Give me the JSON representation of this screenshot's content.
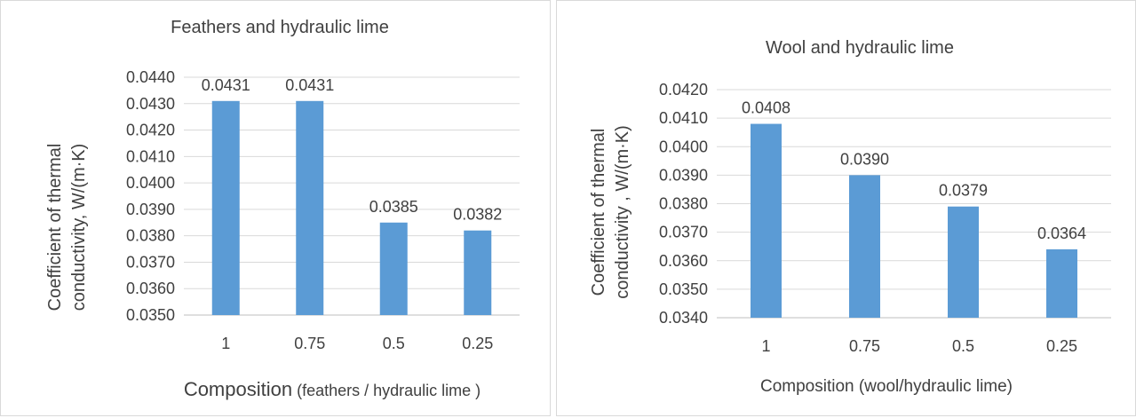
{
  "chart_data": [
    {
      "type": "bar",
      "title": "Feathers and hydraulic lime",
      "xlabel_main": "Composition",
      "xlabel_sub": " (feathers / hydraulic lime )",
      "ylabel_line1": "Coefficient of thermal",
      "ylabel_line2": "conductivity, W/(m·K)",
      "categories": [
        "1",
        "0.75",
        "0.5",
        "0.25"
      ],
      "values": [
        0.0431,
        0.0431,
        0.0385,
        0.0382
      ],
      "value_labels": [
        "0.0431",
        "0.0431",
        "0.0385",
        "0.0382"
      ],
      "ylim": [
        0.035,
        0.044
      ],
      "yticks": [
        "0.0350",
        "0.0360",
        "0.0370",
        "0.0380",
        "0.0390",
        "0.0400",
        "0.0410",
        "0.0420",
        "0.0430",
        "0.0440"
      ],
      "grid": true,
      "bar_color": "#5b9bd5"
    },
    {
      "type": "bar",
      "title": "Wool and hydraulic lime",
      "xlabel_main": "Composition (wool/hydraulic lime)",
      "xlabel_sub": "",
      "ylabel_line1": "Coefficient of thermal",
      "ylabel_line2": "conductivity , W/(m·K)",
      "categories": [
        "1",
        "0.75",
        "0.5",
        "0.25"
      ],
      "values": [
        0.0408,
        0.039,
        0.0379,
        0.0364
      ],
      "value_labels": [
        "0.0408",
        "0.0390",
        "0.0379",
        "0.0364"
      ],
      "ylim": [
        0.034,
        0.042
      ],
      "yticks": [
        "0.0340",
        "0.0350",
        "0.0360",
        "0.0370",
        "0.0380",
        "0.0390",
        "0.0400",
        "0.0410",
        "0.0420"
      ],
      "grid": true,
      "bar_color": "#5b9bd5"
    }
  ]
}
